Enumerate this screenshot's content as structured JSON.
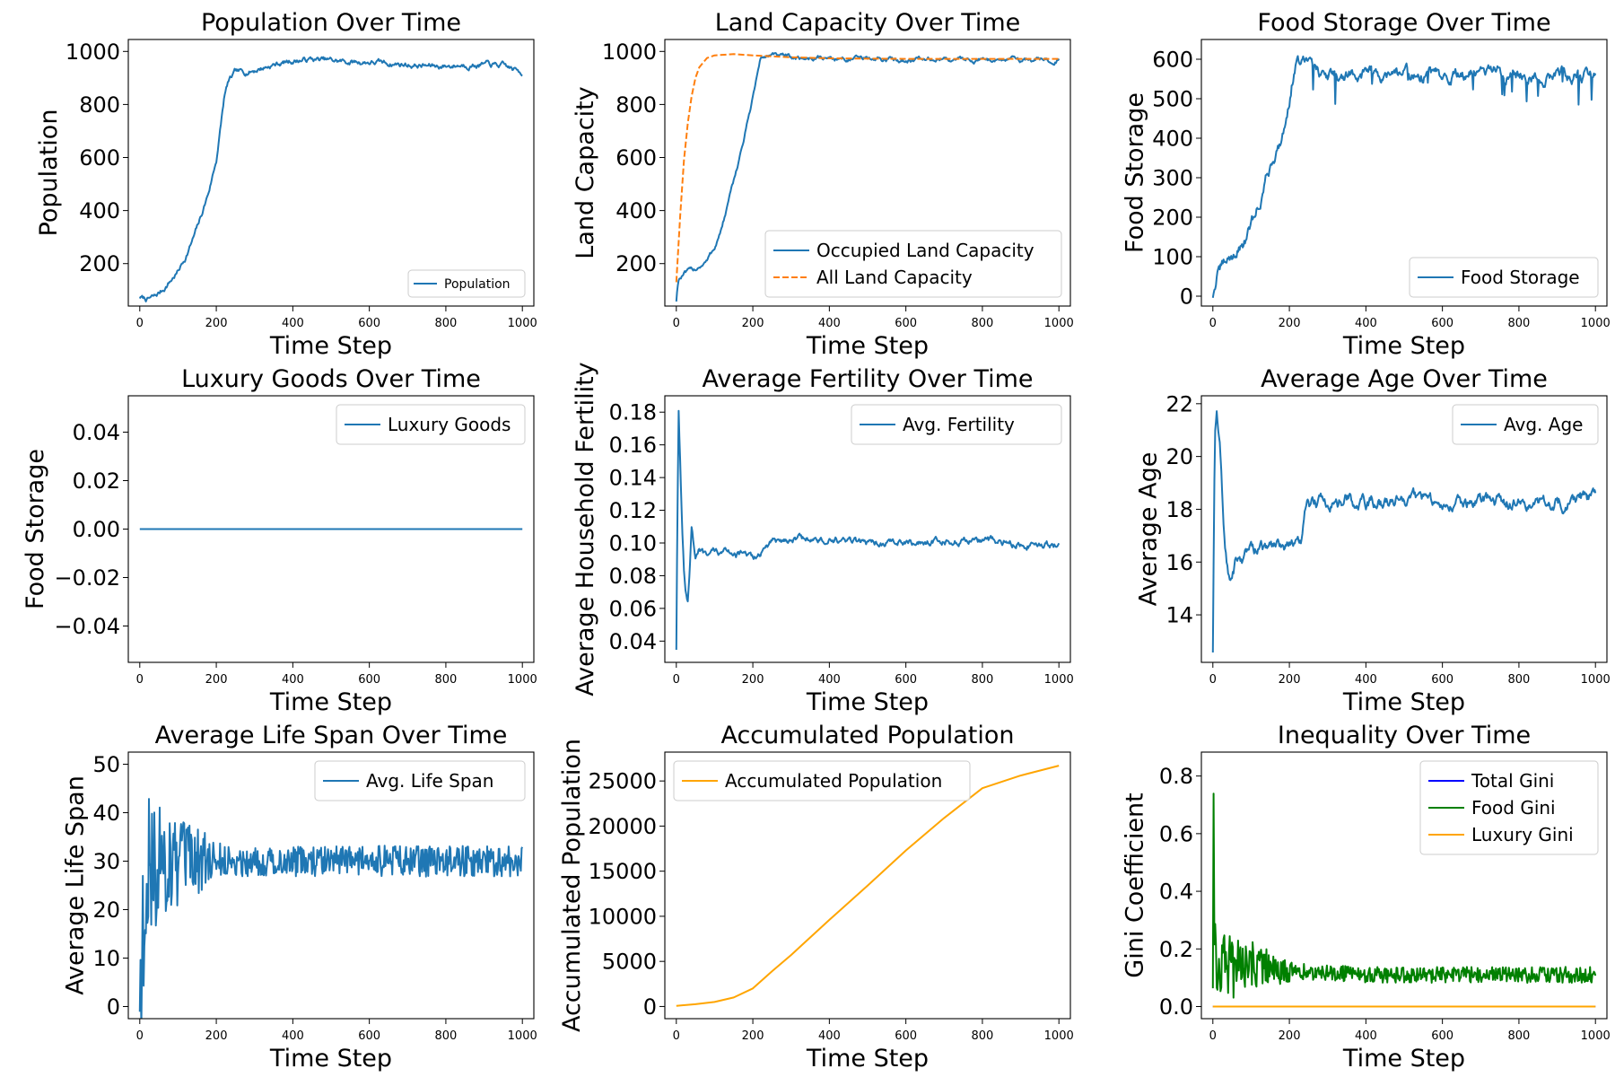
{
  "colors": {
    "tab_blue": "#1f77b4",
    "tab_orange": "#ff7f0e",
    "blue": "#0000ff",
    "green": "#008000",
    "orange": "#ffa500"
  },
  "chart_data": [
    {
      "type": "line",
      "title": "Population Over Time",
      "xlabel": "Time Step",
      "ylabel": "Population",
      "xlim": [
        -30,
        1030
      ],
      "ylim": [
        40,
        1045
      ],
      "xticks": [
        0,
        200,
        400,
        600,
        800,
        1000
      ],
      "yticks": [
        200,
        400,
        600,
        800,
        1000
      ],
      "legend": {
        "position": "lower-right",
        "size": "small"
      },
      "series": [
        {
          "name": "Population",
          "color": "#1f77b4",
          "noise": 14,
          "x": [
            0,
            20,
            40,
            60,
            80,
            100,
            120,
            140,
            160,
            180,
            200,
            210,
            220,
            230,
            250,
            270,
            300,
            350,
            400,
            450,
            500,
            550,
            600,
            650,
            700,
            750,
            800,
            850,
            900,
            950,
            1000
          ],
          "y": [
            72,
            65,
            75,
            100,
            135,
            170,
            225,
            295,
            375,
            470,
            590,
            700,
            820,
            880,
            920,
            920,
            930,
            950,
            965,
            970,
            965,
            960,
            960,
            955,
            950,
            945,
            945,
            950,
            950,
            945,
            920
          ]
        }
      ]
    },
    {
      "type": "line",
      "title": "Land Capacity Over Time",
      "xlabel": "Time Step",
      "ylabel": "Land Capacity",
      "xlim": [
        -30,
        1030
      ],
      "ylim": [
        40,
        1045
      ],
      "xticks": [
        0,
        200,
        400,
        600,
        800,
        1000
      ],
      "yticks": [
        200,
        400,
        600,
        800,
        1000
      ],
      "legend": {
        "position": "lower-right"
      },
      "series": [
        {
          "name": "Occupied Land Capacity",
          "color": "#1f77b4",
          "noise": 12,
          "x": [
            0,
            5,
            20,
            50,
            80,
            100,
            120,
            140,
            160,
            180,
            200,
            210,
            220,
            240,
            300,
            400,
            500,
            600,
            700,
            800,
            900,
            1000
          ],
          "y": [
            60,
            140,
            160,
            180,
            210,
            260,
            340,
            450,
            570,
            690,
            830,
            900,
            975,
            985,
            975,
            975,
            970,
            970,
            970,
            970,
            970,
            970
          ]
        },
        {
          "name": "All Land Capacity",
          "color": "#ff7f0e",
          "dashed": true,
          "x": [
            0,
            10,
            20,
            30,
            40,
            50,
            60,
            80,
            100,
            150,
            200,
            300,
            400,
            600,
            800,
            1000
          ],
          "y": [
            130,
            380,
            590,
            730,
            830,
            900,
            940,
            975,
            985,
            990,
            985,
            978,
            974,
            972,
            972,
            972
          ]
        }
      ]
    },
    {
      "type": "line",
      "title": "Food Storage Over Time",
      "xlabel": "Time Step",
      "ylabel": "Food Storage",
      "xlim": [
        -30,
        1030
      ],
      "ylim": [
        -25,
        650
      ],
      "xticks": [
        0,
        200,
        400,
        600,
        800,
        1000
      ],
      "yticks": [
        0,
        100,
        200,
        300,
        400,
        500,
        600
      ],
      "legend": {
        "position": "lower-right"
      },
      "series": [
        {
          "name": "Food Storage",
          "color": "#1f77b4",
          "noise": 22,
          "dips": 55,
          "x": [
            0,
            10,
            30,
            60,
            90,
            120,
            150,
            180,
            200,
            210,
            220,
            260,
            300,
            400,
            500,
            600,
            700,
            800,
            900,
            1000
          ],
          "y": [
            0,
            50,
            80,
            110,
            150,
            230,
            330,
            400,
            500,
            560,
            600,
            570,
            565,
            565,
            560,
            560,
            565,
            560,
            560,
            560
          ]
        }
      ]
    },
    {
      "type": "line",
      "title": "Luxury Goods Over Time",
      "xlabel": "Time Step",
      "ylabel": "Food Storage",
      "xlim": [
        -30,
        1030
      ],
      "ylim": [
        -0.055,
        0.055
      ],
      "xticks": [
        0,
        200,
        400,
        600,
        800,
        1000
      ],
      "yticks": [
        -0.04,
        -0.02,
        0,
        0.02,
        0.04
      ],
      "legend": {
        "position": "upper-right"
      },
      "series": [
        {
          "name": "Luxury Goods",
          "color": "#1f77b4",
          "x": [
            0,
            1000
          ],
          "y": [
            0,
            0
          ]
        }
      ]
    },
    {
      "type": "line",
      "title": "Average Fertility Over Time",
      "xlabel": "Time Step",
      "ylabel": "Average Household Fertility",
      "xlim": [
        -30,
        1030
      ],
      "ylim": [
        0.027,
        0.19
      ],
      "xticks": [
        0,
        200,
        400,
        600,
        800,
        1000
      ],
      "yticks": [
        0.04,
        0.06,
        0.08,
        0.1,
        0.12,
        0.14,
        0.16,
        0.18
      ],
      "legend": {
        "position": "upper-right"
      },
      "series": [
        {
          "name": "Avg. Fertility",
          "color": "#1f77b4",
          "noise": 0.003,
          "x": [
            0,
            3,
            6,
            10,
            15,
            20,
            25,
            30,
            35,
            40,
            50,
            60,
            80,
            100,
            150,
            200,
            250,
            300,
            400,
            500,
            600,
            700,
            800,
            900,
            1000
          ],
          "y": [
            0.035,
            0.12,
            0.183,
            0.15,
            0.11,
            0.085,
            0.07,
            0.065,
            0.085,
            0.11,
            0.09,
            0.095,
            0.09,
            0.094,
            0.095,
            0.09,
            0.1,
            0.103,
            0.101,
            0.1,
            0.1,
            0.101,
            0.101,
            0.1,
            0.1
          ]
        }
      ]
    },
    {
      "type": "line",
      "title": "Average Age Over Time",
      "xlabel": "Time Step",
      "ylabel": "Average Age",
      "xlim": [
        -30,
        1030
      ],
      "ylim": [
        12.2,
        22.3
      ],
      "xticks": [
        0,
        200,
        400,
        600,
        800,
        1000
      ],
      "yticks": [
        14,
        16,
        18,
        20,
        22
      ],
      "legend": {
        "position": "upper-right"
      },
      "series": [
        {
          "name": "Avg. Age",
          "color": "#1f77b4",
          "noise": 0.35,
          "x": [
            0,
            5,
            10,
            20,
            30,
            40,
            50,
            60,
            80,
            100,
            150,
            200,
            230,
            240,
            250,
            300,
            350,
            400,
            500,
            600,
            700,
            800,
            900,
            1000
          ],
          "y": [
            12.6,
            20.5,
            21.6,
            20.0,
            17.0,
            15.5,
            15.3,
            16.0,
            16.2,
            16.5,
            16.5,
            16.8,
            16.5,
            18.0,
            18.2,
            18.3,
            18.3,
            18.2,
            18.4,
            18.3,
            18.3,
            18.2,
            18.3,
            18.4
          ]
        }
      ]
    },
    {
      "type": "line",
      "title": "Average Life Span Over Time",
      "xlabel": "Time Step",
      "ylabel": "Average Life Span",
      "xlim": [
        -30,
        1030
      ],
      "ylim": [
        -2.5,
        52.5
      ],
      "xticks": [
        0,
        200,
        400,
        600,
        800,
        1000
      ],
      "yticks": [
        0,
        10,
        20,
        30,
        40,
        50
      ],
      "legend": {
        "position": "upper-right"
      },
      "series": [
        {
          "name": "Avg. Life Span",
          "color": "#1f77b4",
          "noise": 3.2,
          "spiky": true,
          "x": [
            0,
            10,
            20,
            40,
            60,
            80,
            100,
            150,
            200,
            300,
            400,
            500,
            600,
            700,
            800,
            900,
            1000
          ],
          "y": [
            0,
            18,
            30,
            28,
            30,
            30,
            29,
            30,
            30,
            30,
            30,
            30,
            30,
            30,
            30,
            30,
            30
          ]
        }
      ]
    },
    {
      "type": "line",
      "title": "Accumulated Population",
      "xlabel": "Time Step",
      "ylabel": "Accumulated Population",
      "xlim": [
        -30,
        1030
      ],
      "ylim": [
        -1350,
        28200
      ],
      "xticks": [
        0,
        200,
        400,
        600,
        800,
        1000
      ],
      "yticks": [
        0,
        5000,
        10000,
        15000,
        20000,
        25000
      ],
      "legend": {
        "position": "upper-left"
      },
      "series": [
        {
          "name": "Accumulated Population",
          "color": "#ffa500",
          "x": [
            0,
            50,
            100,
            150,
            200,
            250,
            300,
            400,
            500,
            600,
            700,
            800,
            900,
            1000
          ],
          "y": [
            70,
            250,
            500,
            1000,
            2000,
            3900,
            5700,
            9600,
            13400,
            17300,
            20900,
            24200,
            25600,
            26700
          ]
        }
      ]
    },
    {
      "type": "line",
      "title": "Inequality Over Time",
      "xlabel": "Time Step",
      "ylabel": "Gini Coefficient",
      "xlim": [
        -30,
        1030
      ],
      "ylim": [
        -0.042,
        0.883
      ],
      "xticks": [
        0,
        200,
        400,
        600,
        800,
        1000
      ],
      "yticks": [
        0,
        0.2,
        0.4,
        0.6,
        0.8
      ],
      "legend": {
        "position": "upper-right"
      },
      "series": [
        {
          "name": "Total Gini",
          "color": "#0000ff",
          "x": [
            0,
            1000
          ],
          "y": [
            0,
            0
          ]
        },
        {
          "name": "Food Gini",
          "color": "#008000",
          "noise": 0.028,
          "spiky": true,
          "x": [
            0,
            2,
            4,
            8,
            15,
            30,
            60,
            100,
            150,
            200,
            250,
            300,
            400,
            500,
            600,
            700,
            800,
            900,
            1000
          ],
          "y": [
            0.05,
            0.84,
            0.3,
            0.12,
            0.14,
            0.15,
            0.13,
            0.15,
            0.13,
            0.12,
            0.12,
            0.12,
            0.11,
            0.11,
            0.11,
            0.11,
            0.11,
            0.11,
            0.11
          ]
        },
        {
          "name": "Luxury Gini",
          "color": "#ffa500",
          "x": [
            0,
            1000
          ],
          "y": [
            0,
            0
          ]
        }
      ]
    }
  ]
}
